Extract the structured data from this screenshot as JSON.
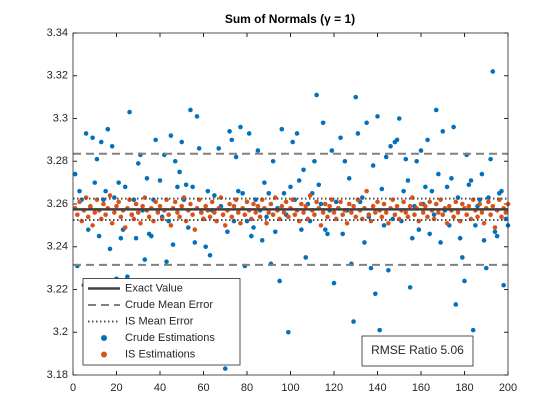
{
  "chart_data": {
    "type": "scatter",
    "title": "Sum of Normals (γ = 1)",
    "xlim": [
      0,
      200
    ],
    "xticks": [
      0,
      20,
      40,
      60,
      80,
      100,
      120,
      140,
      160,
      180,
      200
    ],
    "ylim": [
      3.18,
      3.34
    ],
    "yticks": [
      3.18,
      3.2,
      3.22,
      3.24,
      3.26,
      3.28,
      3.3,
      3.32,
      3.34
    ],
    "grid": false,
    "legend": "southwest",
    "x": [
      1,
      2,
      3,
      4,
      5,
      6,
      7,
      8,
      9,
      10,
      11,
      12,
      13,
      14,
      15,
      16,
      17,
      18,
      19,
      20,
      21,
      22,
      23,
      24,
      25,
      26,
      27,
      28,
      29,
      30,
      31,
      32,
      33,
      34,
      35,
      36,
      37,
      38,
      39,
      40,
      41,
      42,
      43,
      44,
      45,
      46,
      47,
      48,
      49,
      50,
      51,
      52,
      53,
      54,
      55,
      56,
      57,
      58,
      59,
      60,
      61,
      62,
      63,
      64,
      65,
      66,
      67,
      68,
      69,
      70,
      71,
      72,
      73,
      74,
      75,
      76,
      77,
      78,
      79,
      80,
      81,
      82,
      83,
      84,
      85,
      86,
      87,
      88,
      89,
      90,
      91,
      92,
      93,
      94,
      95,
      96,
      97,
      98,
      99,
      100,
      101,
      102,
      103,
      104,
      105,
      106,
      107,
      108,
      109,
      110,
      111,
      112,
      113,
      114,
      115,
      116,
      117,
      118,
      119,
      120,
      121,
      122,
      123,
      124,
      125,
      126,
      127,
      128,
      129,
      130,
      131,
      132,
      133,
      134,
      135,
      136,
      137,
      138,
      139,
      140,
      141,
      142,
      143,
      144,
      145,
      146,
      147,
      148,
      149,
      150,
      151,
      152,
      153,
      154,
      155,
      156,
      157,
      158,
      159,
      160,
      161,
      162,
      163,
      164,
      165,
      166,
      167,
      168,
      169,
      170,
      171,
      172,
      173,
      174,
      175,
      176,
      177,
      178,
      179,
      180,
      181,
      182,
      183,
      184,
      185,
      186,
      187,
      188,
      189,
      190,
      191,
      192,
      193,
      194,
      195,
      196,
      197,
      198,
      199,
      200
    ],
    "lines": [
      {
        "name": "Exact Value",
        "color": "#404040",
        "style": "solid",
        "values": [
          3.2575
        ]
      },
      {
        "name": "Crude Mean Error",
        "color": "#808080",
        "style": "dashed",
        "values": [
          3.2315,
          3.2835
        ]
      },
      {
        "name": "IS Mean Error",
        "color": "#505050",
        "style": "dotted",
        "values": [
          3.2525,
          3.2625
        ]
      }
    ],
    "series": [
      {
        "name": "Crude Estimations",
        "color": "#0072BD",
        "values": [
          3.274,
          3.231,
          3.266,
          3.262,
          3.222,
          3.293,
          3.248,
          3.258,
          3.291,
          3.27,
          3.281,
          3.245,
          3.289,
          3.262,
          3.266,
          3.295,
          3.239,
          3.287,
          3.263,
          3.225,
          3.27,
          3.244,
          3.248,
          3.268,
          3.226,
          3.303,
          3.255,
          3.262,
          3.244,
          3.279,
          3.283,
          3.257,
          3.234,
          3.272,
          3.246,
          3.245,
          3.262,
          3.29,
          3.257,
          3.271,
          3.254,
          3.283,
          3.233,
          3.252,
          3.292,
          3.241,
          3.28,
          3.268,
          3.275,
          3.289,
          3.262,
          3.269,
          3.249,
          3.304,
          3.268,
          3.242,
          3.301,
          3.286,
          3.256,
          3.253,
          3.24,
          3.266,
          3.236,
          3.257,
          3.264,
          3.224,
          3.286,
          3.259,
          3.212,
          3.183,
          3.247,
          3.294,
          3.29,
          3.252,
          3.282,
          3.266,
          3.296,
          3.265,
          3.231,
          3.252,
          3.293,
          3.245,
          3.249,
          3.262,
          3.285,
          3.257,
          3.243,
          3.27,
          3.254,
          3.265,
          3.232,
          3.28,
          3.247,
          3.258,
          3.224,
          3.295,
          3.265,
          3.255,
          3.2,
          3.268,
          3.289,
          3.262,
          3.293,
          3.271,
          3.248,
          3.276,
          3.235,
          3.26,
          3.252,
          3.265,
          3.28,
          3.311,
          3.269,
          3.26,
          3.298,
          3.248,
          3.246,
          3.257,
          3.285,
          3.223,
          3.261,
          3.258,
          3.291,
          3.246,
          3.28,
          3.257,
          3.272,
          3.232,
          3.205,
          3.31,
          3.293,
          3.261,
          3.263,
          3.242,
          3.298,
          3.254,
          3.23,
          3.278,
          3.218,
          3.301,
          3.201,
          3.267,
          3.25,
          3.282,
          3.229,
          3.287,
          3.253,
          3.289,
          3.29,
          3.3,
          3.252,
          3.266,
          3.281,
          3.271,
          3.221,
          3.244,
          3.259,
          3.28,
          3.248,
          3.285,
          3.26,
          3.268,
          3.29,
          3.246,
          3.266,
          3.255,
          3.304,
          3.274,
          3.242,
          3.294,
          3.257,
          3.268,
          3.25,
          3.272,
          3.296,
          3.213,
          3.263,
          3.244,
          3.235,
          3.224,
          3.283,
          3.269,
          3.271,
          3.201,
          3.25,
          3.259,
          3.262,
          3.274,
          3.243,
          3.23,
          3.263,
          3.281,
          3.322,
          3.247,
          3.245,
          3.265,
          3.266,
          3.222,
          3.253,
          3.25
        ]
      },
      {
        "name": "IS Estimations",
        "color": "#D95319",
        "values": [
          3.258,
          3.255,
          3.261,
          3.252,
          3.257,
          3.263,
          3.254,
          3.259,
          3.25,
          3.256,
          3.262,
          3.257,
          3.253,
          3.26,
          3.255,
          3.258,
          3.264,
          3.251,
          3.256,
          3.259,
          3.261,
          3.254,
          3.257,
          3.249,
          3.258,
          3.262,
          3.255,
          3.253,
          3.26,
          3.256,
          3.251,
          3.259,
          3.263,
          3.257,
          3.254,
          3.258,
          3.252,
          3.261,
          3.256,
          3.259,
          3.253,
          3.257,
          3.262,
          3.255,
          3.25,
          3.258,
          3.261,
          3.256,
          3.254,
          3.259,
          3.263,
          3.252,
          3.257,
          3.26,
          3.255,
          3.248,
          3.258,
          3.262,
          3.256,
          3.253,
          3.259,
          3.257,
          3.254,
          3.261,
          3.256,
          3.252,
          3.258,
          3.263,
          3.255,
          3.25,
          3.257,
          3.26,
          3.254,
          3.259,
          3.262,
          3.256,
          3.251,
          3.258,
          3.255,
          3.261,
          3.257,
          3.253,
          3.26,
          3.256,
          3.259,
          3.254,
          3.262,
          3.258,
          3.251,
          3.256,
          3.26,
          3.255,
          3.263,
          3.257,
          3.253,
          3.259,
          3.256,
          3.261,
          3.254,
          3.258,
          3.262,
          3.255,
          3.257,
          3.252,
          3.26,
          3.256,
          3.259,
          3.253,
          3.264,
          3.257,
          3.255,
          3.261,
          3.258,
          3.25,
          3.256,
          3.26,
          3.254,
          3.259,
          3.262,
          3.256,
          3.253,
          3.258,
          3.261,
          3.255,
          3.257,
          3.251,
          3.26,
          3.256,
          3.259,
          3.254,
          3.262,
          3.257,
          3.253,
          3.258,
          3.266,
          3.255,
          3.252,
          3.259,
          3.256,
          3.261,
          3.257,
          3.254,
          3.26,
          3.256,
          3.251,
          3.258,
          3.262,
          3.255,
          3.259,
          3.253,
          3.257,
          3.261,
          3.256,
          3.254,
          3.259,
          3.263,
          3.255,
          3.258,
          3.252,
          3.26,
          3.256,
          3.259,
          3.254,
          3.261,
          3.257,
          3.253,
          3.26,
          3.256,
          3.262,
          3.255,
          3.258,
          3.251,
          3.259,
          3.257,
          3.254,
          3.261,
          3.256,
          3.252,
          3.26,
          3.258,
          3.255,
          3.259,
          3.253,
          3.262,
          3.257,
          3.254,
          3.26,
          3.256,
          3.251,
          3.258,
          3.261,
          3.255,
          3.259,
          3.249,
          3.257,
          3.262,
          3.254,
          3.258,
          3.256,
          3.26
        ]
      }
    ],
    "annotation": "RMSE Ratio 5.06"
  }
}
